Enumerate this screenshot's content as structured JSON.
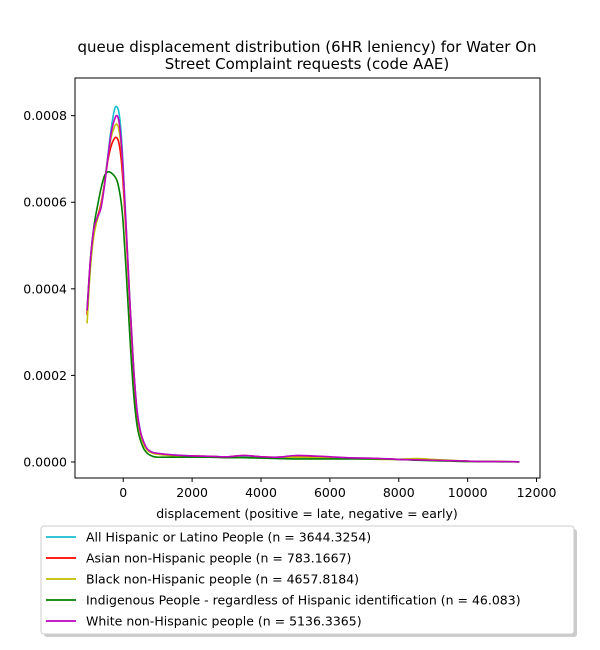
{
  "chart_data": {
    "type": "line",
    "title_lines": [
      "queue displacement distribution (6HR leniency) for Water On",
      "Street Complaint  requests (code AAE)"
    ],
    "xlabel": "displacement (positive = late, negative = early)",
    "ylabel": "",
    "xlim": [
      -1400,
      12100
    ],
    "ylim": [
      -3.7e-05,
      0.000887
    ],
    "x_ticks": [
      0,
      2000,
      4000,
      6000,
      8000,
      10000,
      12000
    ],
    "x_tick_labels": [
      "0",
      "2000",
      "4000",
      "6000",
      "8000",
      "10000",
      "12000"
    ],
    "y_ticks": [
      0,
      0.0002,
      0.0004,
      0.0006,
      0.0008
    ],
    "y_tick_labels": [
      "0.0000",
      "0.0002",
      "0.0004",
      "0.0006",
      "0.0008"
    ],
    "grid": false,
    "legend_position": "below-plot",
    "series": [
      {
        "name": "All Hispanic or Latino People (n = 3644.3254)",
        "color": "#17becf",
        "x": [
          -1050,
          -950,
          -850,
          -750,
          -650,
          -550,
          -450,
          -350,
          -250,
          -180,
          -120,
          -60,
          0,
          100,
          200,
          300,
          400,
          500,
          600,
          700,
          800,
          900,
          1000,
          1200,
          1500,
          2000,
          2500,
          3000,
          3500,
          4000,
          4500,
          5000,
          5500,
          6000,
          6500,
          7000,
          7500,
          8000,
          8500,
          9000,
          9500,
          10000,
          10500,
          11000,
          11500
        ],
        "y": [
          0.00034,
          0.00046,
          0.00053,
          0.000565,
          0.00059,
          0.00064,
          0.000705,
          0.00077,
          0.000815,
          0.00082,
          0.000805,
          0.00076,
          0.00068,
          0.00052,
          0.00036,
          0.00022,
          0.00012,
          7e-05,
          4.5e-05,
          3e-05,
          2.4e-05,
          2.1e-05,
          2e-05,
          1.8e-05,
          1.6e-05,
          1.4e-05,
          1.3e-05,
          1.2e-05,
          1.2e-05,
          1.1e-05,
          1.1e-05,
          1.2e-05,
          1.1e-05,
          1e-05,
          9e-06,
          8e-06,
          7e-06,
          6e-06,
          5e-06,
          4e-06,
          3e-06,
          2e-06,
          1e-06,
          1e-06,
          5e-07
        ]
      },
      {
        "name": "Asian non-Hispanic people (n = 783.1667)",
        "color": "#ff0000",
        "x": [
          -1050,
          -950,
          -850,
          -750,
          -650,
          -550,
          -450,
          -350,
          -250,
          -180,
          -120,
          -60,
          0,
          100,
          200,
          300,
          400,
          500,
          600,
          700,
          800,
          900,
          1000,
          1200,
          1500,
          2000,
          2500,
          3000,
          3500,
          4000,
          4500,
          5000,
          5500,
          6000,
          6500,
          7000,
          7500,
          8000,
          8500,
          9000,
          9500,
          10000,
          10500,
          11000,
          11500
        ],
        "y": [
          0.00034,
          0.00046,
          0.000535,
          0.000565,
          0.000595,
          0.00064,
          0.000695,
          0.00073,
          0.000748,
          0.000748,
          0.000735,
          0.0007,
          0.00064,
          0.0005,
          0.00035,
          0.00021,
          0.00011,
          6.5e-05,
          4e-05,
          2.8e-05,
          2.3e-05,
          2e-05,
          1.9e-05,
          1.7e-05,
          1.5e-05,
          1.4e-05,
          1.3e-05,
          1.2e-05,
          1.5e-05,
          1.2e-05,
          1.1e-05,
          1.4e-05,
          1.3e-05,
          1.1e-05,
          9e-06,
          8e-06,
          7e-06,
          6e-06,
          5e-06,
          4e-06,
          3e-06,
          2e-06,
          1e-06,
          1e-06,
          5e-07
        ]
      },
      {
        "name": "Black non-Hispanic people (n = 4657.8184)",
        "color": "#bfbf00",
        "x": [
          -1050,
          -950,
          -850,
          -750,
          -650,
          -550,
          -450,
          -350,
          -250,
          -180,
          -120,
          -60,
          0,
          100,
          200,
          300,
          400,
          500,
          600,
          700,
          800,
          900,
          1000,
          1200,
          1500,
          2000,
          2500,
          3000,
          3500,
          4000,
          4500,
          5000,
          5500,
          6000,
          6500,
          7000,
          7500,
          8000,
          8500,
          9000,
          9500,
          10000,
          10500,
          11000,
          11500
        ],
        "y": [
          0.00032,
          0.00045,
          0.000525,
          0.00056,
          0.00059,
          0.00064,
          0.0007,
          0.00075,
          0.000775,
          0.00078,
          0.000765,
          0.00073,
          0.00066,
          0.00051,
          0.00036,
          0.00022,
          0.000115,
          6.5e-05,
          4e-05,
          2.7e-05,
          2.2e-05,
          1.9e-05,
          1.8e-05,
          1.6e-05,
          1.4e-05,
          1.2e-05,
          1.1e-05,
          1.1e-05,
          1e-05,
          1e-05,
          1e-05,
          1.1e-05,
          1e-05,
          9e-06,
          8e-06,
          7e-06,
          6e-06,
          6e-06,
          8e-06,
          6e-06,
          4e-06,
          2e-06,
          1e-06,
          1e-06,
          5e-07
        ]
      },
      {
        "name": "Indigenous People - regardless of Hispanic identification (n = 46.083)",
        "color": "#008000",
        "x": [
          -1050,
          -950,
          -850,
          -750,
          -650,
          -550,
          -450,
          -350,
          -250,
          -180,
          -120,
          -60,
          0,
          100,
          200,
          300,
          400,
          500,
          600,
          700,
          800,
          900,
          1000,
          1200,
          1500,
          2000,
          2500,
          3000,
          3500,
          4000,
          4500,
          5000,
          5500,
          6000,
          6500,
          7000,
          7500,
          8000,
          8500,
          9000,
          9500,
          10000,
          10500,
          11000,
          11500
        ],
        "y": [
          0.00035,
          0.00047,
          0.000545,
          0.00059,
          0.00063,
          0.00066,
          0.00067,
          0.000668,
          0.00066,
          0.00065,
          0.00063,
          0.0006,
          0.00055,
          0.00042,
          0.00028,
          0.00016,
          8.5e-05,
          5e-05,
          3e-05,
          2e-05,
          1.5e-05,
          1.2e-05,
          1.1e-05,
          1.1e-05,
          1.1e-05,
          1.1e-05,
          1.1e-05,
          1e-05,
          1e-05,
          9e-06,
          8e-06,
          7e-06,
          7e-06,
          7e-06,
          7e-06,
          7e-06,
          7e-06,
          6e-06,
          4e-06,
          3e-06,
          2e-06,
          1e-06,
          1e-06,
          5e-07,
          5e-07
        ]
      },
      {
        "name": "White non-Hispanic people (n = 5136.3365)",
        "color": "#bf00bf",
        "x": [
          -1050,
          -950,
          -850,
          -750,
          -650,
          -550,
          -450,
          -350,
          -250,
          -180,
          -120,
          -60,
          0,
          100,
          200,
          300,
          400,
          500,
          600,
          700,
          800,
          900,
          1000,
          1200,
          1500,
          2000,
          2500,
          3000,
          3500,
          4000,
          4500,
          5000,
          5500,
          6000,
          6500,
          7000,
          7500,
          8000,
          8500,
          9000,
          9500,
          10000,
          10500,
          11000,
          11500
        ],
        "y": [
          0.00035,
          0.00047,
          0.00054,
          0.000565,
          0.000585,
          0.000635,
          0.0007,
          0.00076,
          0.000792,
          0.0008,
          0.000785,
          0.00074,
          0.00067,
          0.00052,
          0.00036,
          0.00022,
          0.00012,
          7e-05,
          4.5e-05,
          3e-05,
          2.4e-05,
          2.1e-05,
          2e-05,
          1.8e-05,
          1.6e-05,
          1.4e-05,
          1.3e-05,
          1.2e-05,
          1.5e-05,
          1.2e-05,
          1.1e-05,
          1.5e-05,
          1.4e-05,
          1.2e-05,
          1e-05,
          9e-06,
          8e-06,
          6e-06,
          5e-06,
          4e-06,
          3e-06,
          2e-06,
          1e-06,
          1e-06,
          5e-07
        ]
      }
    ]
  }
}
